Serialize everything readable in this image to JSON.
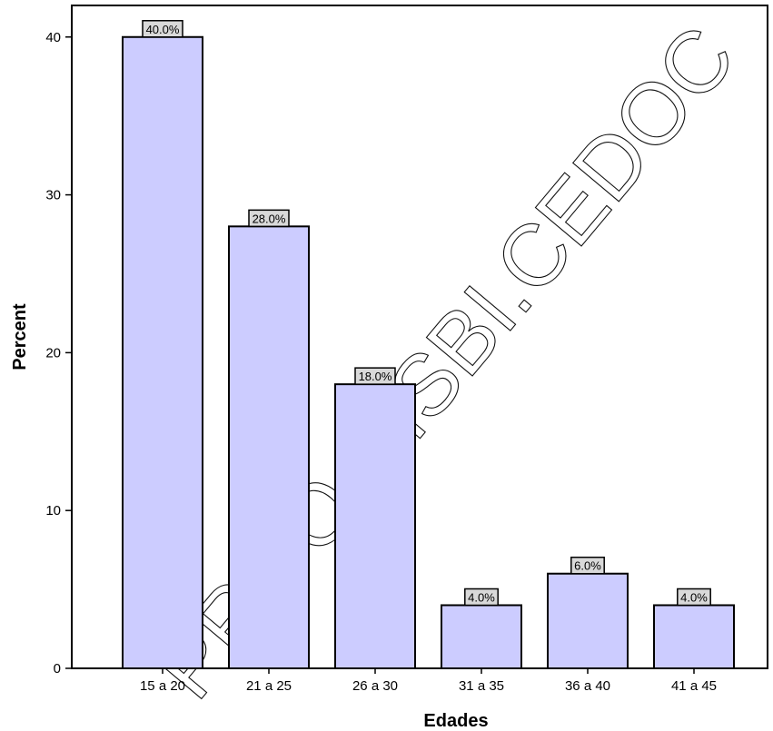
{
  "watermark": "PROO.SISBI.CEDOC",
  "chart_data": {
    "type": "bar",
    "categories": [
      "15 a 20",
      "21 a 25",
      "26 a 30",
      "31 a 35",
      "36 a 40",
      "41 a 45"
    ],
    "values": [
      40.0,
      28.0,
      18.0,
      4.0,
      6.0,
      4.0
    ],
    "data_labels": [
      "40.0%",
      "28.0%",
      "18.0%",
      "4.0%",
      "6.0%",
      "4.0%"
    ],
    "xlabel": "Edades",
    "ylabel": "Percent",
    "ylim": [
      0,
      42
    ],
    "yticks": [
      0,
      10,
      20,
      30,
      40
    ],
    "grid": false,
    "colors": {
      "bar_fill": "#ccccff",
      "bar_stroke": "#000000",
      "label_box_fill": "#d9d9d9"
    }
  }
}
